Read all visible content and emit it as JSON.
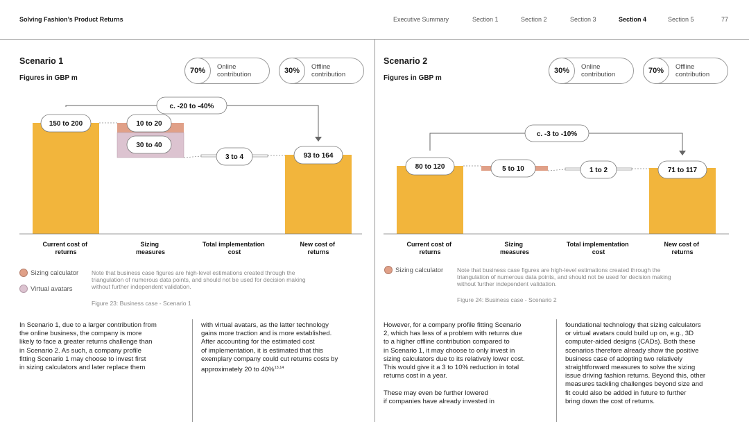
{
  "header": {
    "title": "Solving Fashion’s Product Returns",
    "nav": [
      "Executive Summary",
      "Section 1",
      "Section 2",
      "Section 3",
      "Section 4",
      "Section 5"
    ],
    "active_nav": "Section 4",
    "page_number": "77"
  },
  "colors": {
    "bar": "#F2B53C",
    "sizing_calculator": "#E0A088",
    "virtual_avatars": "#DCC3D0",
    "text": "#1a1a1a",
    "muted": "#888888"
  },
  "scenario1": {
    "title": "Scenario 1",
    "figures_label": "Figures in GBP m",
    "online_pct": "70%",
    "online_label_1": "Online",
    "online_label_2": "contribution",
    "offline_pct": "30%",
    "offline_label_1": "Offline",
    "offline_label_2": "contribution",
    "chart_data": {
      "type": "bar",
      "categories": [
        "Current cost of returns",
        "Sizing measures",
        "Total implementation cost",
        "New cost of returns"
      ],
      "category_labels": [
        [
          "Current cost of",
          "returns"
        ],
        [
          "Sizing",
          "measures"
        ],
        [
          "Total implementation",
          "cost"
        ],
        [
          "New cost of",
          "returns"
        ]
      ],
      "value_labels": [
        "150 to 200",
        "10 to 20",
        "30 to 40",
        "3 to 4",
        "93 to 164"
      ],
      "change_label": "c. -20 to -40%",
      "values": {
        "current": 175,
        "sizing_calculator": 15,
        "virtual_avatars": 35,
        "implementation": 3.5,
        "new": 128
      }
    },
    "legend": [
      "Sizing calculator",
      "Virtual avatars"
    ],
    "note_lines": [
      "Note that business case figures are high-level estimations created through the",
      "triangulation of numerous data points, and should not be used for decision making",
      "without further independent validation."
    ],
    "figure_caption": "Figure 23: Business case - Scenario 1",
    "col1_lines": [
      "In Scenario 1, due to a larger contribution from",
      "the online business, the company is more",
      "likely to face a greater returns challenge than",
      "in Scenario 2. As such, a company profile",
      "fitting Scenario 1 may choose to invest first",
      "in sizing calculators and later replace them"
    ],
    "col2_lines": [
      "with virtual avatars, as the latter technology",
      "gains more traction and is more established.",
      "After accounting for the estimated cost",
      "of implementation, it is estimated that this",
      "exemplary company could cut returns costs by"
    ],
    "col2_last": "approximately 20 to 40%",
    "col2_sup": "13,14"
  },
  "scenario2": {
    "title": "Scenario 2",
    "figures_label": "Figures in GBP m",
    "online_pct": "30%",
    "online_label_1": "Online",
    "online_label_2": "contribution",
    "offline_pct": "70%",
    "offline_label_1": "Offline",
    "offline_label_2": "contribution",
    "chart_data": {
      "type": "bar",
      "categories": [
        "Current cost of returns",
        "Sizing measures",
        "Total implementation cost",
        "New cost of returns"
      ],
      "category_labels": [
        [
          "Current cost of",
          "returns"
        ],
        [
          "Sizing",
          "measures"
        ],
        [
          "Total implementation",
          "cost"
        ],
        [
          "New cost of",
          "returns"
        ]
      ],
      "value_labels": [
        "80 to 120",
        "5 to 10",
        "1 to 2",
        "71 to 117"
      ],
      "change_label": "c. -3 to -10%",
      "values": {
        "current": 100,
        "sizing_calculator": 7.5,
        "implementation": 1.5,
        "new": 94
      }
    },
    "legend": [
      "Sizing calculator"
    ],
    "note_lines": [
      "Note that business case figures are high-level estimations created through the",
      "triangulation of numerous data points, and should not be used for decision making",
      "without further independent validation."
    ],
    "figure_caption": "Figure 24: Business case - Scenario 2",
    "col1_lines": [
      "However, for a company profile fitting Scenario",
      "2, which has less of a problem with returns due",
      "to a higher offline contribution compared to",
      "in Scenario 1, it may choose to only invest in",
      "sizing calculators due to its relatively lower cost.",
      "This would give it a 3 to 10% reduction in total",
      "returns cost in a year.",
      "",
      "These may even be further lowered",
      "if companies have already invested in"
    ],
    "col2_lines": [
      "foundational technology that sizing calculators",
      "or virtual avatars could build up on, e.g., 3D",
      "computer-aided designs (CADs). Both these",
      "scenarios therefore already show the positive",
      "business case of adopting two relatively",
      "straightforward measures to solve the sizing",
      "issue driving fashion returns. Beyond this, other",
      "measures tackling challenges beyond size and",
      "fit could also be added in future to further",
      "bring down the cost of returns."
    ]
  }
}
